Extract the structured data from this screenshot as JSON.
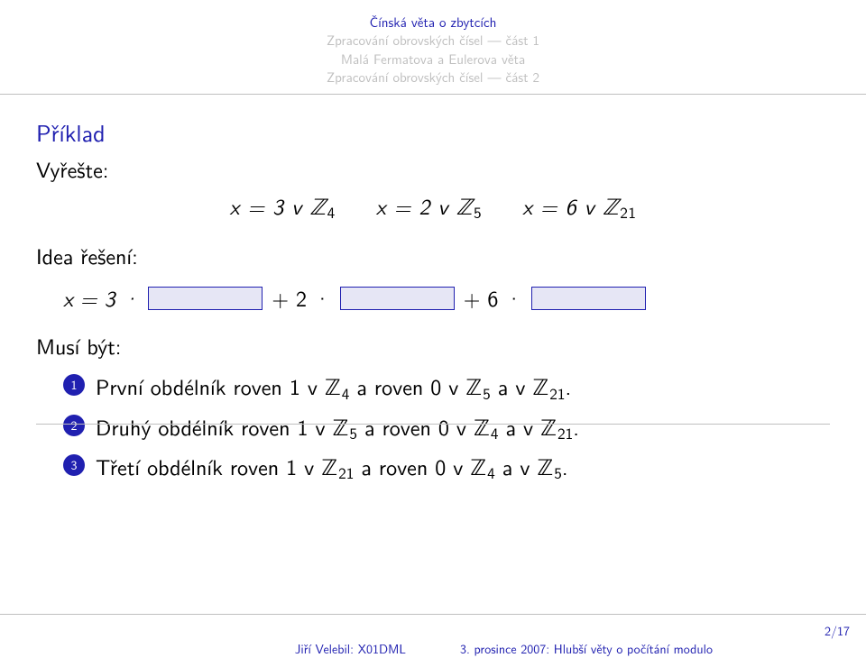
{
  "nav": {
    "r1": "Čínská věta o zbytcích",
    "r2": "Zpracování obrovských čísel — část 1",
    "r3": "Malá Fermatova a Eulerova věta",
    "r4": "Zpracování obrovských čísel — část 2"
  },
  "block": {
    "title": "Příklad",
    "prompt": "Vyřešte:",
    "idea": "Idea řešení:",
    "musi": "Musí být:"
  },
  "eq": {
    "a": "x = 3 v ℤ",
    "a_sub": "4",
    "b": "x = 2 v ℤ",
    "b_sub": "5",
    "c": "x = 6 v ℤ",
    "c_sub": "21"
  },
  "eq2": {
    "lead": "x  =  3 ·",
    "plus2": "+ 2 ·",
    "plus6": "+ 6 ·"
  },
  "items": {
    "i1a": "První obdélník roven 1 v ℤ",
    "i1b": " a roven 0 v ℤ",
    "i1c": " a v ℤ",
    "s1a": "4",
    "s1b": "5",
    "s1c": "21",
    "i2a": "Druhý obdélník roven 1 v ℤ",
    "s2a": "5",
    "s2b": "4",
    "s2c": "21",
    "i3a": "Třetí obdélník roven 1 v ℤ",
    "s3a": "21",
    "s3b": "4",
    "s3c": "5",
    "dot": "."
  },
  "footer": {
    "left": "Jiří Velebil: X01DML",
    "right": "3. prosince 2007: Hlubší věty o počítání modulo",
    "page": "2/17"
  },
  "colors": {
    "accent": "#2020b0",
    "muted": "#bfbfbf",
    "boxfill": "#e6e6f5"
  }
}
